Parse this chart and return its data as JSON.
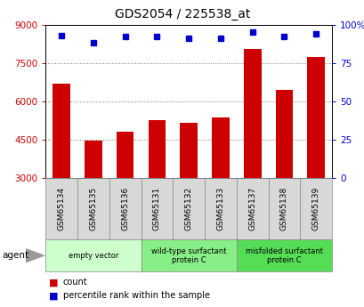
{
  "title": "GDS2054 / 225538_at",
  "samples": [
    "GSM65134",
    "GSM65135",
    "GSM65136",
    "GSM65131",
    "GSM65132",
    "GSM65133",
    "GSM65137",
    "GSM65138",
    "GSM65139"
  ],
  "counts": [
    6700,
    4480,
    4800,
    5250,
    5150,
    5380,
    8050,
    6450,
    7750
  ],
  "percentiles": [
    93,
    88,
    92,
    92,
    91,
    91,
    95,
    92,
    94
  ],
  "groups": [
    {
      "label": "empty vector",
      "start": 0,
      "end": 3,
      "color": "#ccffcc"
    },
    {
      "label": "wild-type surfactant\nprotein C",
      "start": 3,
      "end": 6,
      "color": "#88ee88"
    },
    {
      "label": "misfolded surfactant\nprotein C",
      "start": 6,
      "end": 9,
      "color": "#55dd55"
    }
  ],
  "y_min": 3000,
  "y_max": 9000,
  "y_ticks_left": [
    3000,
    4500,
    6000,
    7500,
    9000
  ],
  "y_ticks_right": [
    0,
    25,
    50,
    75,
    100
  ],
  "bar_color": "#cc0000",
  "dot_color": "#0000cc",
  "bar_width": 0.55,
  "grid_color": "#777777",
  "sample_bg": "#d8d8d8",
  "plot_bg": "#ffffff"
}
